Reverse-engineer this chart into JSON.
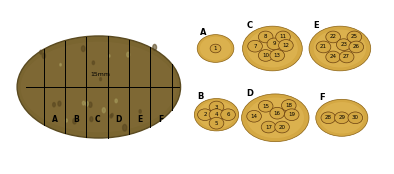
{
  "background_color": "#ffffff",
  "right_panel_bg": "#000000",
  "potato_skin_color": "#7a6530",
  "potato_skin_dark": "#5a4a20",
  "potato_flesh_color": "#d4a843",
  "potato_flesh_light": "#e8c060",
  "circle_color": "#c08020",
  "circle_edge": "#000000",
  "text_color": "#000000",
  "label_color": "#000000",
  "left_grid_labels": [
    "A",
    "B",
    "C",
    "D",
    "E",
    "F"
  ],
  "left_scale_label": "15mm",
  "panels": {
    "A": {
      "label": "A",
      "numbers": [
        1
      ],
      "shape": "small_round"
    },
    "B": {
      "label": "B",
      "numbers": [
        2,
        3,
        4,
        5,
        6
      ],
      "shape": "small_round"
    },
    "C": {
      "label": "C",
      "numbers": [
        7,
        8,
        9,
        10,
        11,
        12,
        13
      ],
      "shape": "large_round"
    },
    "D": {
      "label": "D",
      "numbers": [
        14,
        15,
        16,
        17,
        18,
        19,
        20
      ],
      "shape": "large_round"
    },
    "E": {
      "label": "E",
      "numbers": [
        21,
        22,
        23,
        24,
        25,
        26,
        27
      ],
      "shape": "large_round"
    },
    "F": {
      "label": "F",
      "numbers": [
        28,
        29,
        30
      ],
      "shape": "medium_round"
    }
  }
}
